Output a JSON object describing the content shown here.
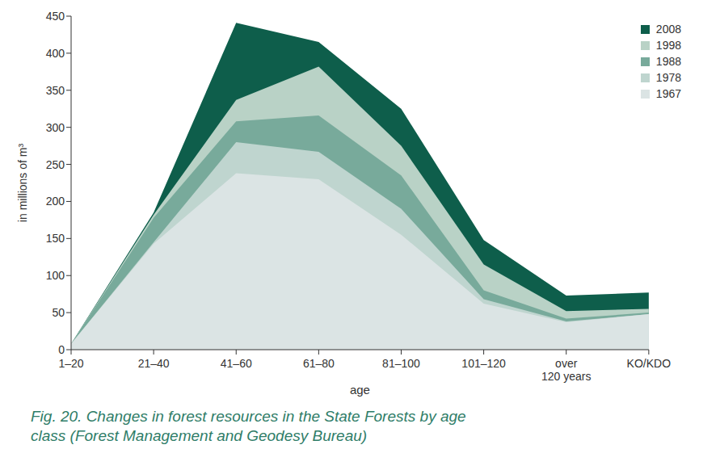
{
  "chart_data": {
    "type": "area",
    "title": "Fig. 20. Changes in forest resources in the State Forests by age class (Forest Management and Geodesy Bureau)",
    "x_label": "age",
    "y_label": "in millions of m³",
    "categories": [
      "1–20",
      "21–40",
      "41–60",
      "61–80",
      "81–100",
      "101–120",
      "over 120 years",
      "KO/KDO"
    ],
    "series": [
      {
        "name": "2008",
        "color": "#0e5e4b",
        "values": [
          8,
          185,
          441,
          415,
          325,
          148,
          73,
          77
        ]
      },
      {
        "name": "1998",
        "color": "#b9d2c6",
        "values": [
          8,
          182,
          337,
          382,
          275,
          115,
          52,
          55
        ]
      },
      {
        "name": "1988",
        "color": "#78aa9b",
        "values": [
          8,
          178,
          308,
          316,
          235,
          80,
          42,
          50
        ]
      },
      {
        "name": "1978",
        "color": "#bfd5cf",
        "values": [
          8,
          145,
          280,
          267,
          190,
          68,
          38,
          48
        ]
      },
      {
        "name": "1967",
        "color": "#dbe4e4",
        "values": [
          8,
          143,
          238,
          230,
          155,
          62,
          37,
          48
        ]
      }
    ],
    "ylim": [
      0,
      450
    ],
    "yticks": [
      0,
      50,
      100,
      150,
      200,
      250,
      300,
      350,
      400,
      450
    ],
    "grid": false,
    "legend": "upper right",
    "stacked": false
  }
}
